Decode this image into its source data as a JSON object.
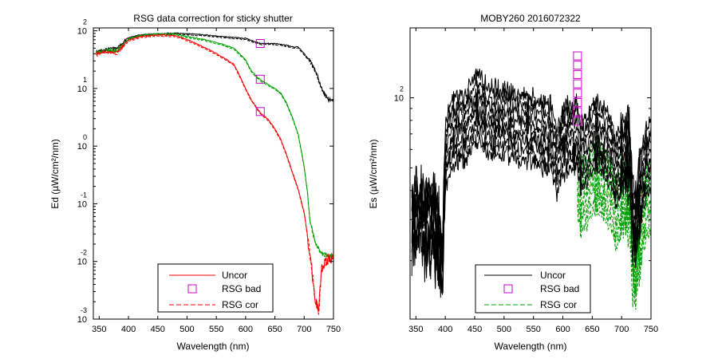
{
  "chart_data": [
    {
      "type": "line",
      "title": "RSG data correction for sticky shutter",
      "xlabel": "Wavelength (nm)",
      "ylabel": "Ed (µW/cm²/nm)",
      "xlim": [
        340,
        750
      ],
      "ylog": true,
      "ylim_log10": [
        -3,
        2.05
      ],
      "xticks": [
        "350",
        "400",
        "450",
        "500",
        "550",
        "600",
        "650",
        "700",
        "750"
      ],
      "ytick_exps": [
        "2",
        "1",
        "0",
        "-1",
        "-2",
        "-3"
      ],
      "ytick_base": "10",
      "legend": {
        "placement": "bottom-right",
        "entries": [
          {
            "label": "Uncor",
            "color": "#ff0000",
            "style": "solid"
          },
          {
            "label": "RSG bad",
            "color": "#cc00cc",
            "style": "square"
          },
          {
            "label": "RSG cor",
            "color": "#ff0000",
            "style": "dashed"
          }
        ]
      },
      "series": [
        {
          "color": "#000000",
          "x": [
            345,
            360,
            380,
            400,
            420,
            450,
            480,
            500,
            530,
            560,
            600,
            625,
            650,
            670,
            680,
            690,
            700,
            710,
            720,
            730,
            740,
            750
          ],
          "log10_y": [
            1.64,
            1.68,
            1.7,
            1.88,
            1.93,
            1.95,
            1.96,
            1.95,
            1.93,
            1.9,
            1.87,
            1.78,
            1.78,
            1.75,
            1.72,
            1.72,
            1.6,
            1.48,
            1.3,
            1.0,
            0.82,
            0.8
          ]
        },
        {
          "color": "#00a000",
          "x": [
            345,
            360,
            380,
            400,
            420,
            450,
            480,
            500,
            530,
            560,
            580,
            590,
            600,
            610,
            625,
            650,
            660,
            670,
            680,
            690,
            700,
            705,
            710,
            720,
            730,
            740,
            750
          ],
          "log10_y": [
            1.62,
            1.66,
            1.66,
            1.86,
            1.92,
            1.95,
            1.95,
            1.9,
            1.85,
            1.77,
            1.7,
            1.6,
            1.5,
            1.3,
            1.15,
            1.0,
            0.92,
            0.75,
            0.5,
            0.2,
            -0.35,
            -0.75,
            -1.3,
            -1.7,
            -1.85,
            -1.9,
            -1.9
          ]
        },
        {
          "color": "#ff0000",
          "x": [
            345,
            360,
            380,
            400,
            420,
            450,
            480,
            500,
            520,
            540,
            560,
            580,
            590,
            600,
            610,
            625,
            640,
            650,
            660,
            670,
            680,
            690,
            700,
            705,
            710,
            715,
            720,
            725,
            730,
            740,
            750
          ],
          "log10_y": [
            1.6,
            1.64,
            1.62,
            1.84,
            1.9,
            1.93,
            1.92,
            1.85,
            1.76,
            1.66,
            1.55,
            1.42,
            1.22,
            1.0,
            0.8,
            0.58,
            0.45,
            0.3,
            0.12,
            -0.15,
            -0.45,
            -0.75,
            -1.15,
            -1.5,
            -1.9,
            -2.3,
            -2.7,
            -2.8,
            -2.1,
            -1.95,
            -1.92
          ]
        }
      ],
      "rsg_bad": {
        "x": [
          625,
          625,
          625
        ],
        "log10_y": [
          1.78,
          1.16,
          0.6
        ]
      }
    },
    {
      "type": "line",
      "title": "MOBY260  2016072322",
      "xlabel": "Wavelength (nm)",
      "ylabel": "Es (µW/cm²/nm)",
      "xlim": [
        340,
        750
      ],
      "ylog": true,
      "ytick_exps": [
        "2"
      ],
      "ytick_base": "10",
      "xticks": [
        "350",
        "400",
        "450",
        "500",
        "550",
        "600",
        "650",
        "700",
        "750"
      ],
      "legend": {
        "placement": "bottom-right",
        "entries": [
          {
            "label": "Uncor",
            "color": "#000000",
            "style": "solid"
          },
          {
            "label": "RSG bad",
            "color": "#cc00cc",
            "style": "square"
          },
          {
            "label": "RSG cor",
            "color": "#00a000",
            "style": "dashed"
          }
        ]
      },
      "uncor_color": "#000000",
      "cor_color": "#00a000",
      "base_profile": {
        "x": [
          345,
          360,
          370,
          380,
          390,
          395,
          400,
          410,
          420,
          430,
          440,
          450,
          460,
          470,
          480,
          490,
          500,
          510,
          520,
          530,
          540,
          550,
          560,
          570,
          580,
          590,
          600,
          610,
          620,
          625,
          630,
          640,
          650,
          660,
          670,
          680,
          690,
          700,
          710,
          715,
          720,
          725,
          730,
          740,
          750
        ],
        "log10_y": [
          1.6,
          1.63,
          1.57,
          1.62,
          1.5,
          1.42,
          1.88,
          1.98,
          2.0,
          2.01,
          2.03,
          2.1,
          2.08,
          2.05,
          2.04,
          2.04,
          2.05,
          2.03,
          2.02,
          2.01,
          2.01,
          2.0,
          1.99,
          1.97,
          1.98,
          1.86,
          1.96,
          1.97,
          1.98,
          1.99,
          1.87,
          1.93,
          1.97,
          1.97,
          1.95,
          1.93,
          1.82,
          1.9,
          1.89,
          1.86,
          1.63,
          1.58,
          1.72,
          1.85,
          1.9
        ]
      },
      "offsets_log10": [
        0.0,
        -0.04,
        -0.08,
        -0.12,
        -0.16,
        -0.2,
        -0.24,
        -0.28
      ],
      "cor_start_x": 625,
      "rsg_bad": {
        "x": [
          625,
          625,
          625,
          625,
          625,
          625,
          625,
          625
        ],
        "log10_y": [
          2.18,
          2.14,
          2.1,
          2.06,
          2.02,
          1.98,
          1.94,
          1.9
        ]
      },
      "ylim_log10": [
        1.05,
        2.3
      ]
    }
  ]
}
